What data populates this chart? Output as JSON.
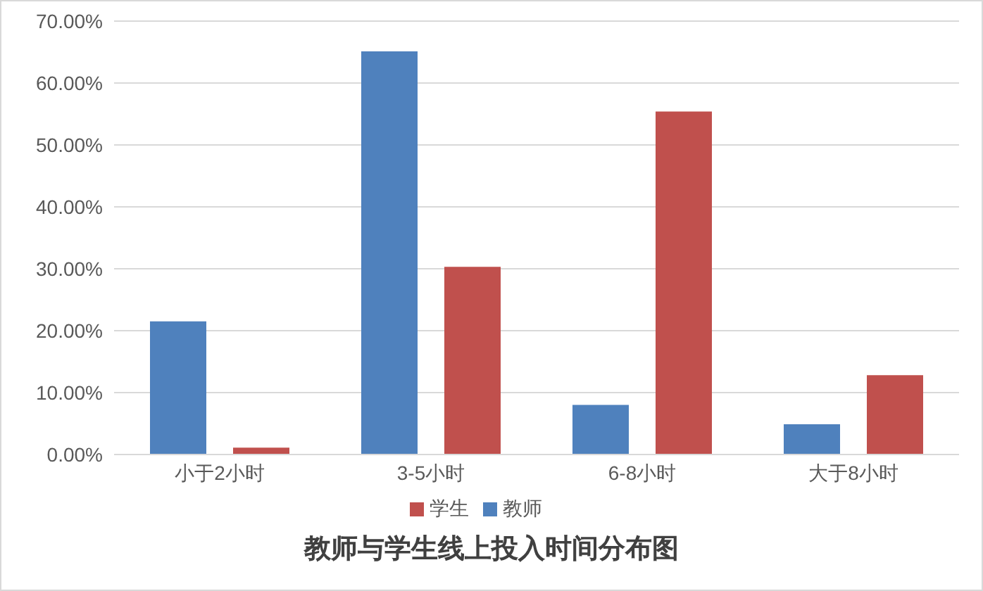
{
  "chart_data": {
    "type": "bar",
    "title": "教师与学生线上投入时间分布图",
    "categories": [
      "小于2小时",
      "3-5小时",
      "6-8小时",
      "大于8小时"
    ],
    "series": [
      {
        "name": "教师",
        "color": "#4f81bd",
        "values": [
          21.5,
          65.1,
          8.0,
          4.9
        ]
      },
      {
        "name": "学生",
        "color": "#c0504d",
        "values": [
          1.1,
          30.3,
          55.4,
          12.8
        ]
      }
    ],
    "ylim": [
      0,
      70
    ],
    "yticks": [
      {
        "value": 0,
        "label": "0.00%"
      },
      {
        "value": 10,
        "label": "10.00%"
      },
      {
        "value": 20,
        "label": "20.00%"
      },
      {
        "value": 30,
        "label": "30.00%"
      },
      {
        "value": 40,
        "label": "40.00%"
      },
      {
        "value": 50,
        "label": "50.00%"
      },
      {
        "value": 60,
        "label": "60.00%"
      },
      {
        "value": 70,
        "label": "70.00%"
      }
    ],
    "grid": "y",
    "legend": "bottom"
  }
}
